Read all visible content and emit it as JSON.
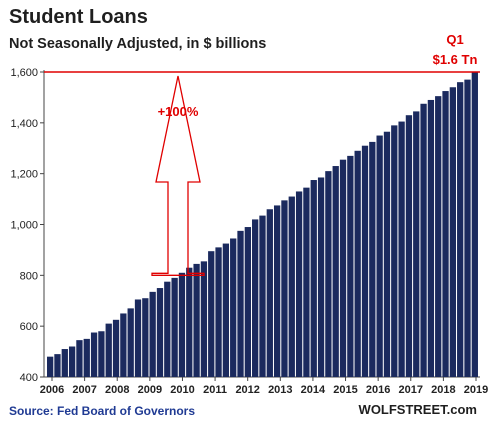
{
  "chart_data": {
    "type": "bar",
    "title": "Student Loans",
    "subtitle": "Not Seasonally Adjusted, in $ billions",
    "ylim": [
      400,
      1600
    ],
    "yticks": [
      400,
      600,
      800,
      1000,
      1200,
      1400,
      "1,600"
    ],
    "ytick_labels": [
      "400",
      "600",
      "800",
      "1,000",
      "1,200",
      "1,400",
      "1,600"
    ],
    "xtick_labels": [
      "2006",
      "2007",
      "2008",
      "2009",
      "2010",
      "2011",
      "2012",
      "2013",
      "2014",
      "2015",
      "2016",
      "2017",
      "2018",
      "2019"
    ],
    "bar_color": "#1b2a5e",
    "accent_color": "#e00000",
    "values": [
      480,
      490,
      510,
      520,
      545,
      550,
      575,
      580,
      610,
      625,
      650,
      670,
      705,
      710,
      735,
      750,
      775,
      790,
      810,
      830,
      845,
      855,
      895,
      910,
      925,
      945,
      975,
      990,
      1020,
      1035,
      1060,
      1075,
      1095,
      1110,
      1130,
      1145,
      1175,
      1185,
      1210,
      1230,
      1255,
      1270,
      1290,
      1310,
      1325,
      1350,
      1365,
      1390,
      1405,
      1430,
      1445,
      1475,
      1490,
      1505,
      1525,
      1540,
      1560,
      1570,
      1600
    ],
    "annotations": {
      "arrow_label": "+100%",
      "arrow_from_value": 800,
      "arrow_to_value": 1600,
      "end_label_line1": "Q1",
      "end_label_line2": "$1.6 Tn"
    },
    "grid": false
  },
  "source": "Source: Fed Board of Governors",
  "brand": "WOLFSTREET.com"
}
